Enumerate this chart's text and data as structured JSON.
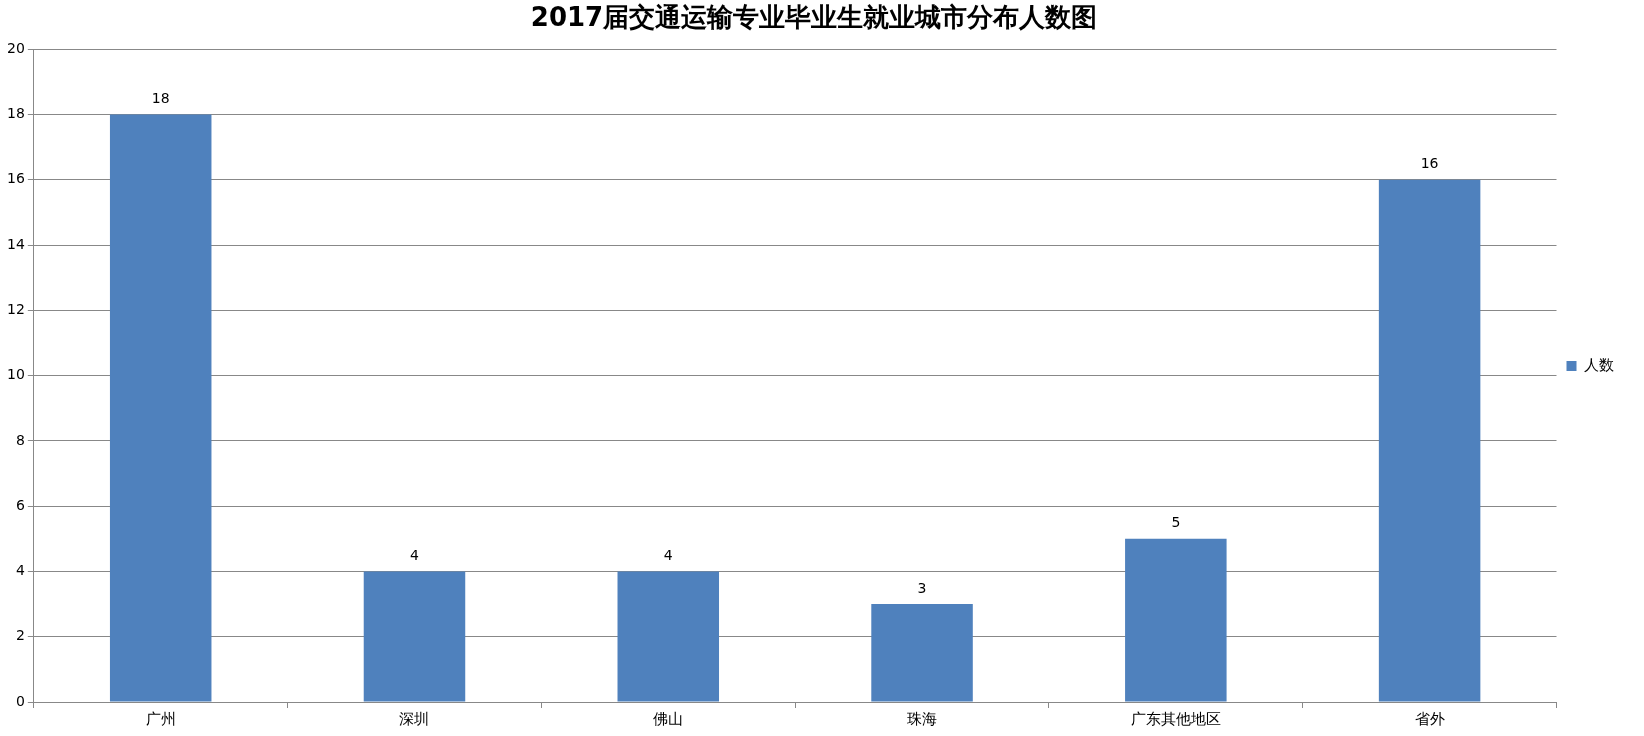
{
  "chart_data": {
    "type": "bar",
    "title": "2017届交通运输专业毕业生就业城市分布人数图",
    "categories": [
      "广州",
      "深圳",
      "佛山",
      "珠海",
      "广东其他地区",
      "省外"
    ],
    "series": [
      {
        "name": "人数",
        "color": "#4f81bd",
        "values": [
          18,
          4,
          4,
          3,
          5,
          16
        ]
      }
    ],
    "ylim": [
      0,
      20
    ],
    "yticks": [
      0,
      2,
      4,
      6,
      8,
      10,
      12,
      14,
      16,
      18,
      20
    ],
    "grid": "y",
    "legend": "right",
    "data_labels": true
  }
}
